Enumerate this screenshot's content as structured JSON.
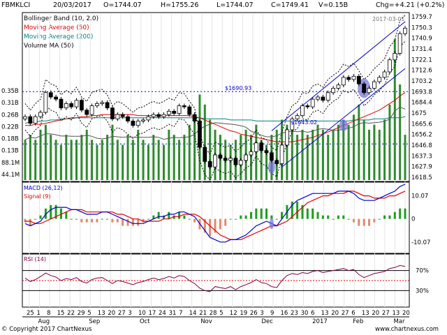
{
  "header": {
    "symbol": "FBMKLCI",
    "date": "20/03/2017",
    "open": "O=1744.07",
    "high": "H=1755.26",
    "low": "L=1744.07",
    "close": "C=1749.41",
    "volume": "V=0.15B",
    "change": "Chg=+4.21 (+0.2%)"
  },
  "legend": [
    {
      "label": "Bollinger Band (10, 2.0)",
      "color": "#000000"
    },
    {
      "label": "Moving Average (50)",
      "color": "#e00000"
    },
    {
      "label": "Moving Average (200)",
      "color": "#008080"
    },
    {
      "label": "Volume MA (50)",
      "color": "#000000"
    }
  ],
  "annotations": {
    "last_date": "2017-03-01",
    "level_upper": "$1690.93",
    "level_lower": "$1643.02"
  },
  "panels": {
    "macd_label": "MACD (26,12)",
    "signal_label": "Signal (9)",
    "rsi_label": "RSI (14)"
  },
  "footer": {
    "copyright": "© Copyright 2017 ChartNexus",
    "url": "www.chartnexus.com"
  },
  "colors": {
    "candle": "#000000",
    "ma50": "#e00000",
    "ma200": "#008080",
    "bb": "#000000",
    "volume": "#2e8b2e",
    "channel": "#0000cc",
    "macd": "#0000cc",
    "signal": "#e00000",
    "hist_pos": "#1f9e1f",
    "hist_neg": "#e08a6e",
    "rsi": "#800040",
    "highlight": "#7070d8"
  },
  "chart_data": {
    "type": "candlestick",
    "price_axis": {
      "ylim": [
        1610,
        1762
      ],
      "tick_labels": [
        "1759.7",
        "1750.3",
        "1740.9",
        "1731.4",
        "1722.1",
        "1712.6",
        "1703.2",
        "1693.8",
        "1684.4",
        "1675",
        "1665.6",
        "1656.2",
        "1646.8",
        "1637.3",
        "1627.9",
        "1618.5"
      ]
    },
    "volume_axis": {
      "ylim": [
        0.05,
        0.38
      ],
      "tick_labels": [
        "0.35B",
        "0.31B",
        "0.26B",
        "0.22B",
        "0.18B",
        "0.13B",
        "88.1M",
        "44.1M"
      ]
    },
    "x_axis": {
      "day_labels": [
        "25",
        "1",
        "8",
        "15",
        "22",
        "29",
        "5",
        "13",
        "20",
        "27",
        "3",
        "10",
        "17",
        "24",
        "31",
        "7",
        "14",
        "21",
        "28",
        "5",
        "12",
        "19",
        "26",
        "3",
        "9",
        "16",
        "23",
        "30",
        "6",
        "13",
        "20",
        "27",
        "6",
        "13",
        "20",
        "27",
        "13",
        "20"
      ],
      "month_labels": [
        {
          "label": "Aug",
          "at": 1
        },
        {
          "label": "Sep",
          "at": 6
        },
        {
          "label": "Oct",
          "at": 11
        },
        {
          "label": "Nov",
          "at": 17
        },
        {
          "label": "Dec",
          "at": 23
        },
        {
          "label": "2017",
          "at": 28
        },
        {
          "label": "Feb",
          "at": 32
        },
        {
          "label": "Mar",
          "at": 36
        }
      ]
    },
    "close": [
      1668,
      1662,
      1668,
      1672,
      1690,
      1686,
      1684,
      1676,
      1680,
      1677,
      1683,
      1674,
      1670,
      1678,
      1680,
      1681,
      1676,
      1666,
      1670,
      1668,
      1664,
      1660,
      1664,
      1665,
      1668,
      1670,
      1668,
      1670,
      1673,
      1671,
      1678,
      1677,
      1670,
      1664,
      1640,
      1627,
      1622,
      1633,
      1630,
      1628,
      1630,
      1624,
      1628,
      1633,
      1636,
      1644,
      1637,
      1635,
      1628,
      1625,
      1642,
      1656,
      1666,
      1669,
      1678,
      1677,
      1684,
      1686,
      1683,
      1690,
      1694,
      1697,
      1704,
      1702,
      1705,
      1698,
      1690,
      1694,
      1700,
      1704,
      1709,
      1720,
      1726,
      1744,
      1749
    ],
    "ma50": [
      1660,
      1660,
      1661,
      1661,
      1662,
      1663,
      1664,
      1665,
      1666,
      1667,
      1667,
      1668,
      1668,
      1669,
      1669,
      1670,
      1670,
      1670,
      1670,
      1670,
      1670,
      1670,
      1669,
      1669,
      1669,
      1669,
      1669,
      1669,
      1669,
      1669,
      1669,
      1669,
      1669,
      1668,
      1667,
      1665,
      1663,
      1661,
      1659,
      1657,
      1655,
      1654,
      1652,
      1651,
      1650,
      1649,
      1648,
      1647,
      1646,
      1645,
      1645,
      1645,
      1645,
      1646,
      1647,
      1648,
      1649,
      1651,
      1652,
      1654,
      1656,
      1658,
      1660,
      1662,
      1664,
      1666,
      1668,
      1670,
      1672,
      1674,
      1677,
      1680,
      1683,
      1687,
      1690
    ],
    "ma200": [
      1662,
      1663,
      1663,
      1664,
      1664,
      1665,
      1665,
      1666,
      1666,
      1666,
      1667,
      1667,
      1667,
      1667,
      1667,
      1667,
      1667,
      1667,
      1667,
      1667,
      1667,
      1667,
      1667,
      1667,
      1667,
      1667,
      1667,
      1667,
      1667,
      1667,
      1667,
      1667,
      1667,
      1667,
      1667,
      1666,
      1666,
      1666,
      1666,
      1666,
      1665,
      1665,
      1665,
      1665,
      1665,
      1664,
      1664,
      1664,
      1664,
      1664,
      1664,
      1664,
      1664,
      1664,
      1664,
      1664,
      1664,
      1664,
      1664,
      1664,
      1664,
      1664,
      1664,
      1664,
      1665,
      1665,
      1665,
      1665,
      1666,
      1666,
      1666,
      1667,
      1667,
      1667,
      1668
    ],
    "volume": [
      0.13,
      0.14,
      0.13,
      0.15,
      0.16,
      0.14,
      0.13,
      0.12,
      0.14,
      0.13,
      0.13,
      0.14,
      0.15,
      0.13,
      0.12,
      0.13,
      0.14,
      0.16,
      0.13,
      0.12,
      0.14,
      0.13,
      0.15,
      0.13,
      0.12,
      0.14,
      0.13,
      0.12,
      0.15,
      0.14,
      0.13,
      0.14,
      0.16,
      0.18,
      0.22,
      0.2,
      0.17,
      0.15,
      0.14,
      0.13,
      0.12,
      0.13,
      0.14,
      0.15,
      0.14,
      0.16,
      0.13,
      0.12,
      0.14,
      0.15,
      0.17,
      0.16,
      0.15,
      0.14,
      0.15,
      0.14,
      0.15,
      0.16,
      0.15,
      0.14,
      0.15,
      0.16,
      0.17,
      0.16,
      0.18,
      0.2,
      0.17,
      0.15,
      0.16,
      0.15,
      0.17,
      0.2,
      0.33,
      0.24,
      0.14
    ],
    "macd": {
      "ylim": [
        -14,
        15
      ],
      "tick_labels": [
        "10.07",
        "0",
        "-10.07"
      ],
      "macd": [
        -2,
        -3,
        -2,
        -1,
        2,
        4,
        5,
        5,
        5,
        4,
        4,
        3,
        2,
        2,
        2,
        3,
        3,
        2,
        1,
        0,
        -1,
        -2,
        -2,
        -2,
        -1,
        0,
        1,
        1,
        2,
        2,
        3,
        3,
        2,
        1,
        -2,
        -5,
        -8,
        -9,
        -10,
        -10,
        -9,
        -9,
        -8,
        -7,
        -5,
        -3,
        -2,
        -1,
        -2,
        -3,
        0,
        3,
        6,
        8,
        9,
        10,
        11,
        11,
        11,
        11,
        11,
        12,
        12,
        12,
        11,
        9,
        8,
        8,
        8,
        9,
        10,
        11,
        12,
        14,
        15
      ],
      "signal": [
        -1,
        -1,
        -2,
        -2,
        -1,
        0,
        1,
        2,
        3,
        4,
        4,
        4,
        3,
        3,
        3,
        3,
        3,
        3,
        2,
        2,
        1,
        0,
        0,
        -1,
        -1,
        -1,
        -1,
        0,
        0,
        1,
        1,
        2,
        2,
        2,
        1,
        -1,
        -3,
        -5,
        -7,
        -8,
        -9,
        -9,
        -9,
        -8,
        -7,
        -6,
        -5,
        -4,
        -3,
        -3,
        -2,
        -1,
        1,
        3,
        5,
        7,
        8,
        9,
        10,
        10,
        11,
        11,
        11,
        12,
        12,
        11,
        10,
        10,
        9,
        9,
        9,
        10,
        10,
        11,
        12
      ]
    },
    "rsi": {
      "ylim": [
        0,
        100
      ],
      "tick_labels": [
        "70%",
        "30%"
      ],
      "values": [
        55,
        48,
        52,
        58,
        65,
        60,
        57,
        50,
        54,
        52,
        56,
        48,
        45,
        52,
        55,
        56,
        50,
        44,
        50,
        48,
        45,
        42,
        46,
        48,
        52,
        55,
        52,
        54,
        58,
        55,
        60,
        58,
        50,
        44,
        35,
        30,
        28,
        38,
        36,
        34,
        38,
        32,
        38,
        42,
        46,
        52,
        46,
        44,
        38,
        36,
        50,
        60,
        64,
        62,
        66,
        64,
        68,
        70,
        66,
        68,
        70,
        72,
        74,
        70,
        72,
        62,
        56,
        60,
        64,
        66,
        68,
        74,
        76,
        80,
        78
      ]
    }
  }
}
